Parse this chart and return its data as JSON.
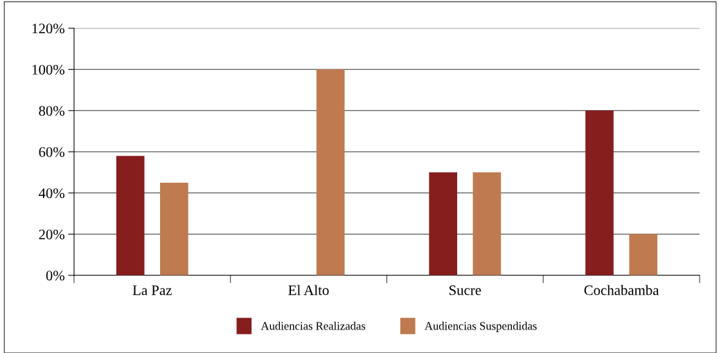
{
  "chart_data": {
    "type": "bar",
    "categories": [
      "La Paz",
      "El Alto",
      "Sucre",
      "Cochabamba"
    ],
    "series": [
      {
        "name": "Audiencias Realizadas",
        "color": "#861e1e",
        "values": [
          58,
          0,
          50,
          80
        ]
      },
      {
        "name": "Audiencias Suspendidas",
        "color": "#bf7a50",
        "values": [
          45,
          100,
          50,
          20
        ]
      }
    ],
    "ylim": [
      0,
      120
    ],
    "yticks": [
      {
        "value": 0,
        "label": "0%"
      },
      {
        "value": 20,
        "label": "20%"
      },
      {
        "value": 40,
        "label": "40%"
      },
      {
        "value": 60,
        "label": "60%"
      },
      {
        "value": 80,
        "label": "80%"
      },
      {
        "value": 100,
        "label": "100%"
      },
      {
        "value": 120,
        "label": "120%"
      }
    ],
    "grid": "y",
    "legend": "bottom"
  }
}
